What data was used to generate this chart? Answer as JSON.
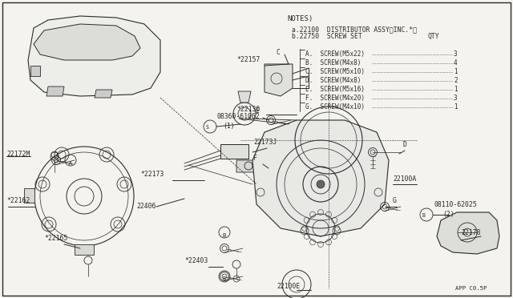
{
  "bg_color": "#f5f3ee",
  "line_color": "#2a2a2a",
  "notes_title": "NOTES)",
  "note_a": "a.22100  DISTRIBUTOR ASSY〈INC.*〉",
  "note_b": "b.22750  SCREW SET",
  "qty_label": "QTY",
  "screw_rows": [
    {
      "label": "A.",
      "desc": "SCREW(M5x22)",
      "qty": "3"
    },
    {
      "label": "B.",
      "desc": "SCREW(M4x8) ",
      "qty": "4"
    },
    {
      "label": "C.",
      "desc": "SCREW(M5x10)",
      "qty": "1"
    },
    {
      "label": "D.",
      "desc": "SCREW(M4x8) ",
      "qty": "2"
    },
    {
      "label": "E.",
      "desc": "SCREW(M5x16)",
      "qty": "1"
    },
    {
      "label": "F.",
      "desc": "SCREW(M4x20)",
      "qty": "3"
    },
    {
      "label": "G.",
      "desc": "SCREW(M4x10)",
      "qty": "1"
    }
  ],
  "font_size_notes": 7.0,
  "font_size_labels": 6.2,
  "font_size_small": 5.5,
  "figsize": [
    6.4,
    3.72
  ],
  "dpi": 100
}
